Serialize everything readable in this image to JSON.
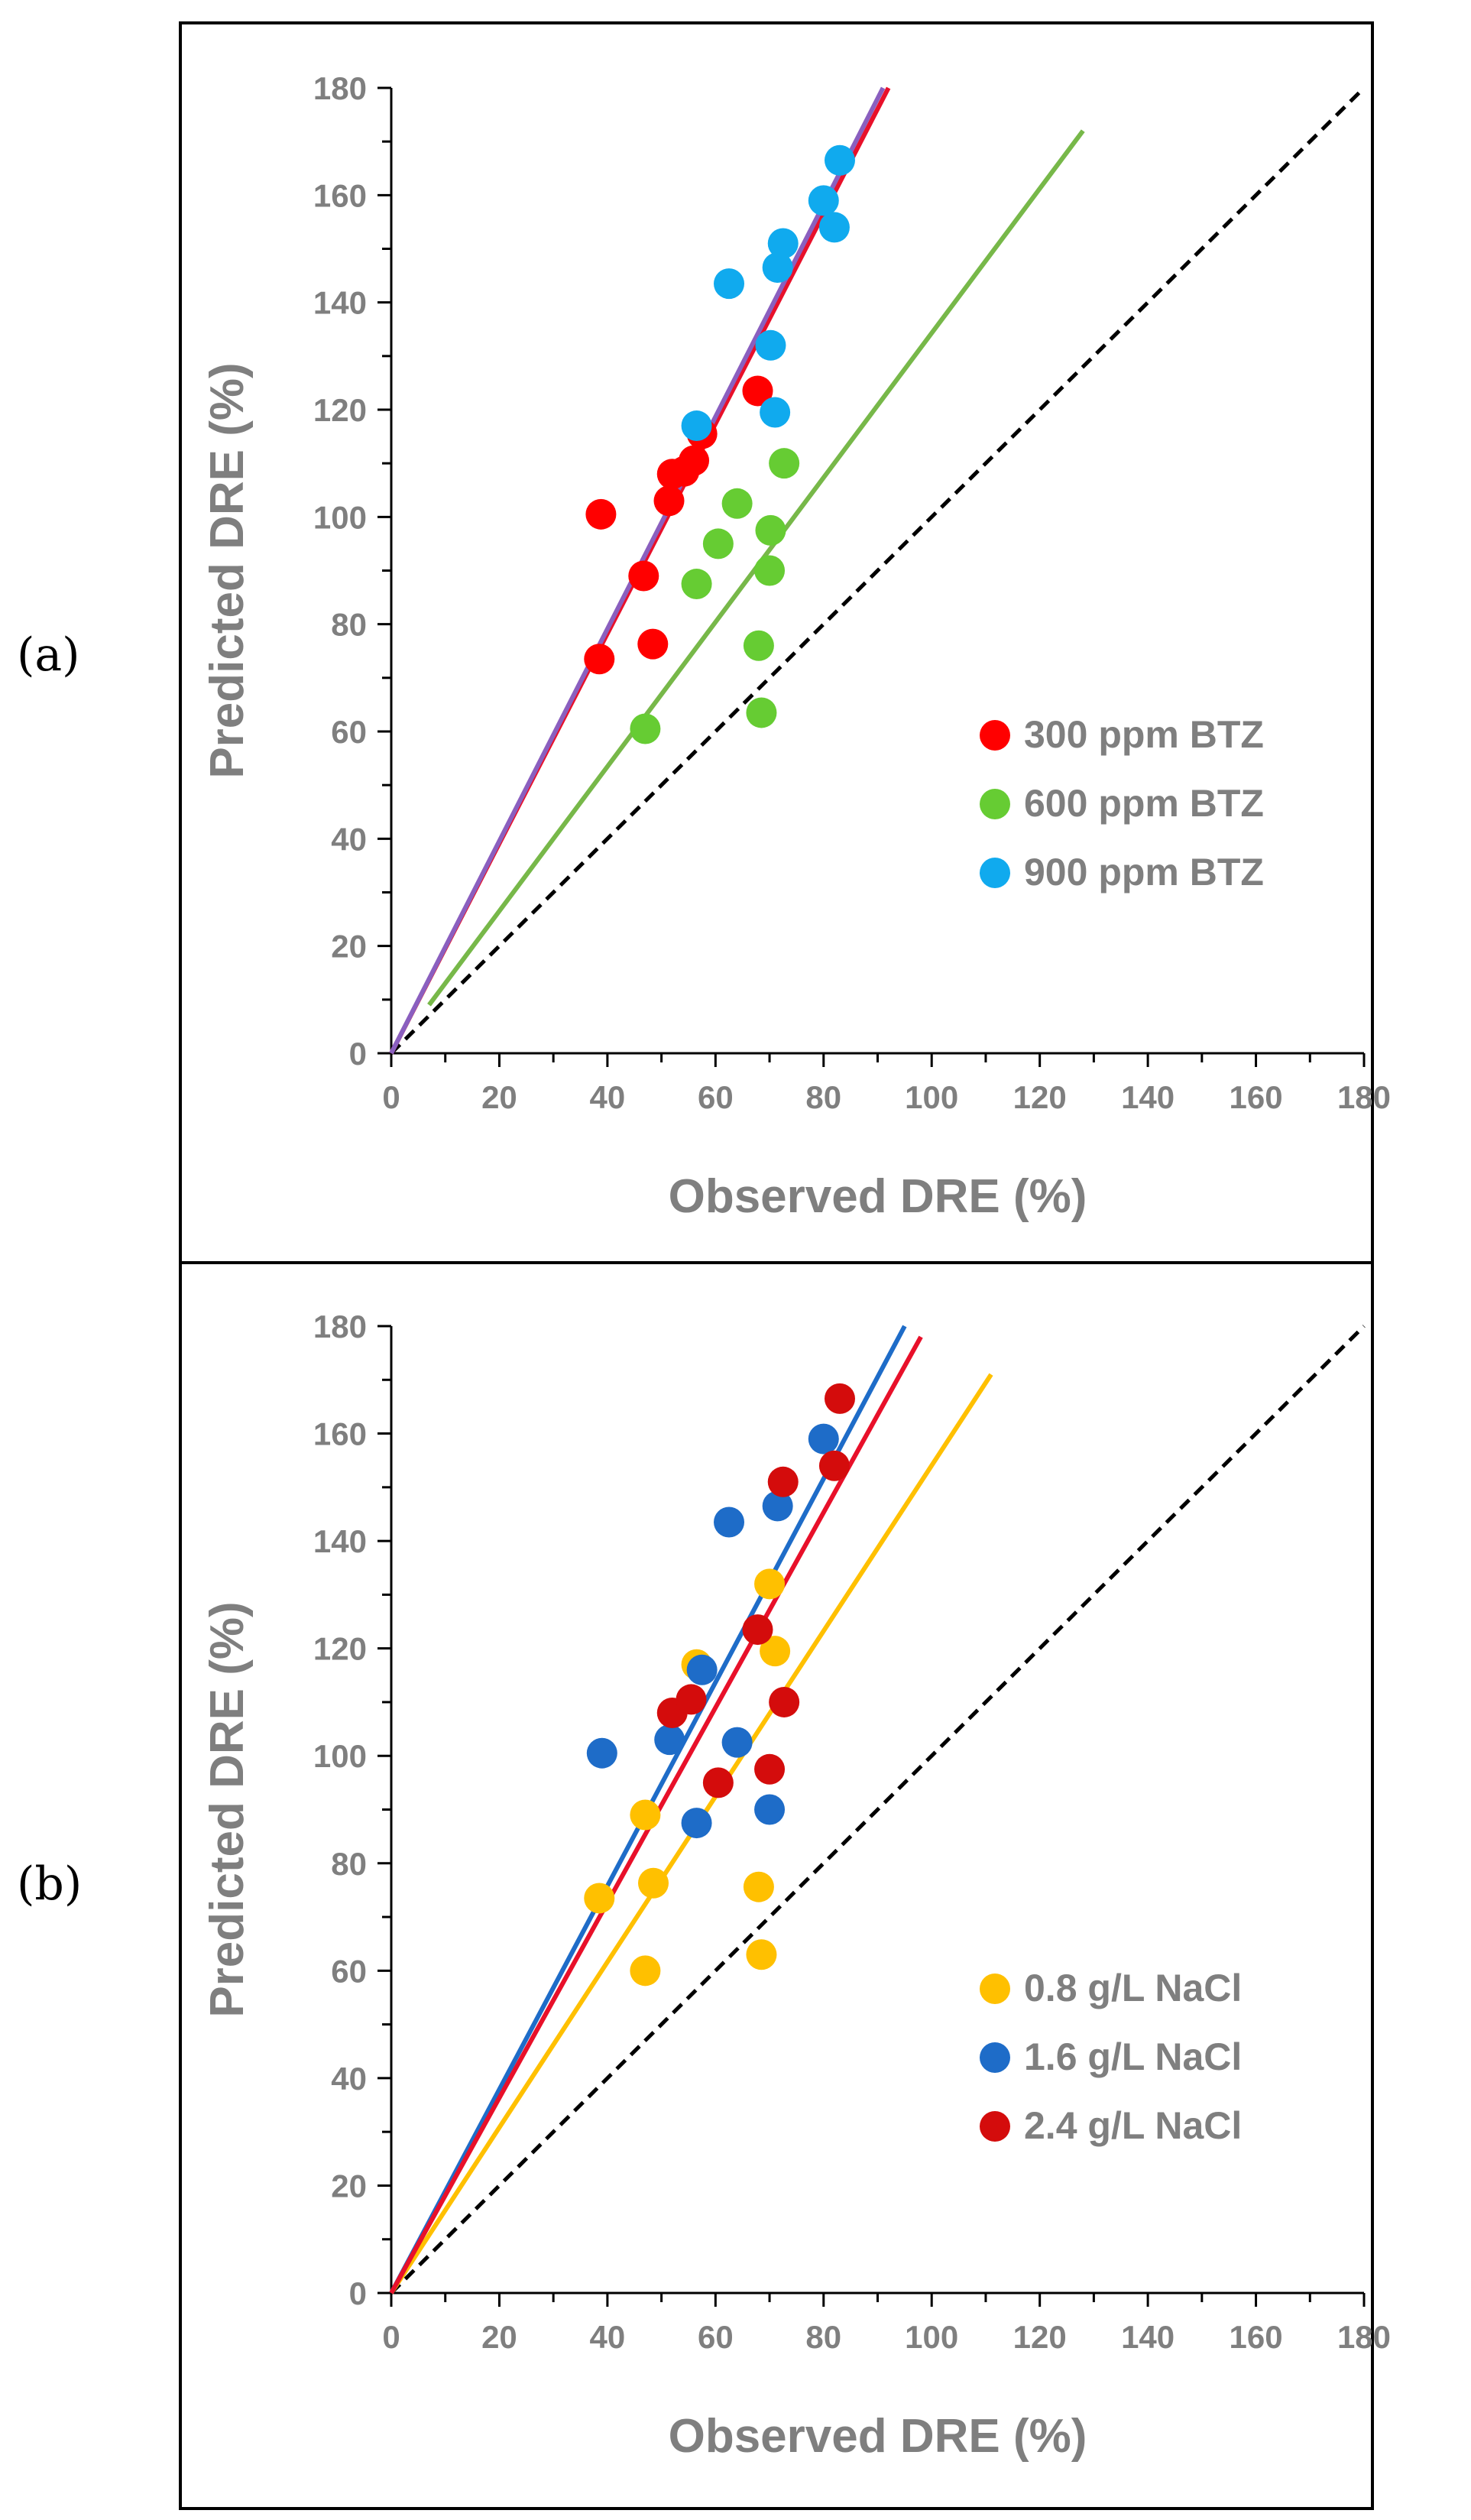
{
  "chart_data": [
    {
      "panel_label": "(a)",
      "type": "scatter",
      "xlabel": "Observed DRE (%)",
      "ylabel": "Predicted DRE (%)",
      "xlim": [
        0,
        180
      ],
      "ylim": [
        0,
        180
      ],
      "x_ticks": [
        "0",
        "20",
        "40",
        "60",
        "80",
        "100",
        "120",
        "140",
        "160",
        "180"
      ],
      "y_ticks": [
        "0",
        "20",
        "40",
        "60",
        "80",
        "100",
        "120",
        "140",
        "160",
        "180"
      ],
      "legend_position": "right-middle",
      "reference_line": {
        "name": "y = x",
        "style": "dashed",
        "color": "#000000",
        "x": [
          0,
          180
        ],
        "y": [
          0,
          180
        ]
      },
      "series": [
        {
          "name": "300 ppm BTZ",
          "color": "#ff0000",
          "points": [
            [
              38.5,
              73.5
            ],
            [
              38.8,
              100.5
            ],
            [
              46.7,
              89
            ],
            [
              48.4,
              76.3
            ],
            [
              51.4,
              103
            ],
            [
              52,
              108
            ],
            [
              54.2,
              108.5
            ],
            [
              56,
              110.5
            ],
            [
              57.5,
              115.5
            ],
            [
              67.8,
              123.5
            ]
          ],
          "fit": {
            "color": "#e8102a",
            "x": [
              0,
              92
            ],
            "y": [
              0,
              180
            ]
          }
        },
        {
          "name": "600 ppm BTZ",
          "color": "#66cc33",
          "points": [
            [
              47,
              60.5
            ],
            [
              56.5,
              87.5
            ],
            [
              60.5,
              95
            ],
            [
              64,
              102.5
            ],
            [
              68,
              76
            ],
            [
              68.5,
              63.5
            ],
            [
              70,
              90
            ],
            [
              70.2,
              97.5
            ],
            [
              72.7,
              110
            ]
          ],
          "fit": {
            "color": "#77b849",
            "x": [
              7,
              128
            ],
            "y": [
              9,
              172
            ]
          }
        },
        {
          "name": "900 ppm BTZ",
          "color": "#10aaee",
          "points": [
            [
              56.5,
              117
            ],
            [
              62.5,
              143.5
            ],
            [
              70.2,
              132
            ],
            [
              71,
              119.5
            ],
            [
              71.5,
              146.5
            ],
            [
              72.5,
              151
            ],
            [
              80,
              159
            ],
            [
              82,
              154
            ],
            [
              83,
              166.5
            ]
          ],
          "fit": {
            "color": "#8a5fbf",
            "x": [
              0,
              91
            ],
            "y": [
              0,
              180
            ]
          }
        }
      ]
    },
    {
      "panel_label": "(b)",
      "type": "scatter",
      "xlabel": "Observed DRE (%)",
      "ylabel": "Predicted DRE (%)",
      "xlim": [
        0,
        180
      ],
      "ylim": [
        0,
        180
      ],
      "x_ticks": [
        "0",
        "20",
        "40",
        "60",
        "80",
        "100",
        "120",
        "140",
        "160",
        "180"
      ],
      "y_ticks": [
        "0",
        "20",
        "40",
        "60",
        "80",
        "100",
        "120",
        "140",
        "160",
        "180"
      ],
      "legend_position": "bottom-right",
      "reference_line": {
        "name": "y = x",
        "style": "dashed",
        "color": "#000000",
        "x": [
          0,
          180
        ],
        "y": [
          0,
          180
        ]
      },
      "series": [
        {
          "name": "0.8 g/L NaCl",
          "color": "#ffc000",
          "points": [
            [
              38.5,
              73.5
            ],
            [
              47,
              89
            ],
            [
              47,
              60
            ],
            [
              48.5,
              76.3
            ],
            [
              56.5,
              117
            ],
            [
              68,
              75.6
            ],
            [
              68.5,
              63
            ],
            [
              70,
              132
            ],
            [
              71,
              119.5
            ]
          ],
          "fit": {
            "color": "#ffc000",
            "x": [
              0,
              111
            ],
            "y": [
              0,
              171
            ]
          }
        },
        {
          "name": "1.6 g/L NaCl",
          "color": "#1e6cc8",
          "points": [
            [
              39,
              100.5
            ],
            [
              51.5,
              103
            ],
            [
              56.5,
              87.5
            ],
            [
              57.5,
              116
            ],
            [
              62.5,
              143.5
            ],
            [
              64,
              102.5
            ],
            [
              70,
              90
            ],
            [
              71.5,
              146.5
            ],
            [
              80,
              159
            ]
          ],
          "fit": {
            "color": "#1e6cc8",
            "x": [
              0,
              95
            ],
            "y": [
              0,
              180
            ]
          }
        },
        {
          "name": "2.4 g/L NaCl",
          "color": "#d40c0c",
          "points": [
            [
              52,
              108
            ],
            [
              55.5,
              110.5
            ],
            [
              60.5,
              95
            ],
            [
              67.8,
              123.5
            ],
            [
              70,
              97.5
            ],
            [
              72.5,
              151
            ],
            [
              72.7,
              110
            ],
            [
              82,
              154
            ],
            [
              83,
              166.5
            ]
          ],
          "fit": {
            "color": "#e8102a",
            "x": [
              0,
              98
            ],
            "y": [
              0,
              178
            ]
          }
        }
      ]
    }
  ]
}
